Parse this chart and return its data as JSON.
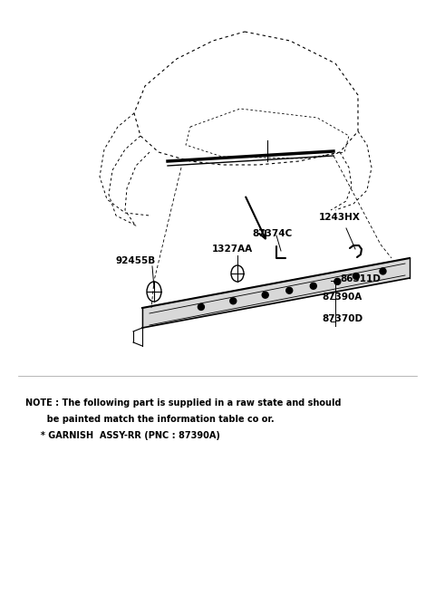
{
  "bg_color": "#ffffff",
  "note_line1": "NOTE : The following part is supplied in a raw state and should",
  "note_line2": "       be painted match the information table co or.",
  "note_line3": "     * GARNISH  ASSY-RR (PNC : 87390A)",
  "fig_w": 4.8,
  "fig_h": 6.57,
  "dpi": 100
}
